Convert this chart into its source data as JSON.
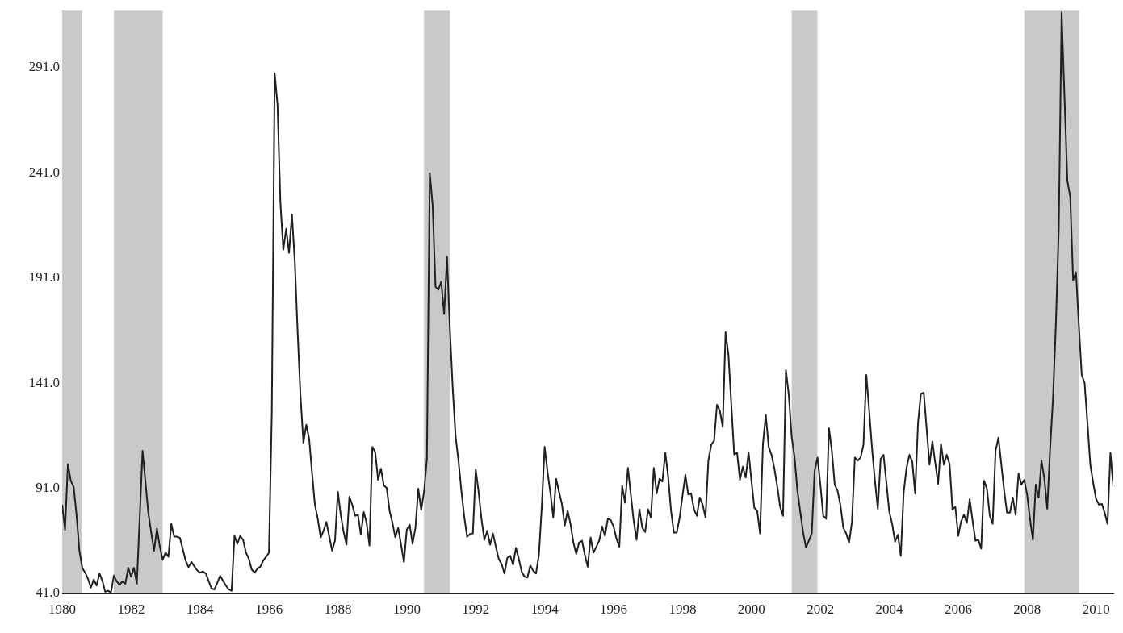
{
  "chart_data": {
    "type": "line",
    "color": "#231f20",
    "marker": "none",
    "x": [
      "1980-01",
      "1980-02",
      "1980-03",
      "1980-04",
      "1980-05",
      "1980-06",
      "1980-07",
      "1980-08",
      "1980-09",
      "1980-10",
      "1980-11",
      "1980-12",
      "1981-01",
      "1981-02",
      "1981-03",
      "1981-04",
      "1981-05",
      "1981-06",
      "1981-07",
      "1981-08",
      "1981-09",
      "1981-10",
      "1981-11",
      "1981-12",
      "1982-01",
      "1982-02",
      "1982-03",
      "1982-04",
      "1982-05",
      "1982-06",
      "1982-07",
      "1982-08",
      "1982-09",
      "1982-10",
      "1982-11",
      "1982-12",
      "1983-01",
      "1983-02",
      "1983-03",
      "1983-04",
      "1983-05",
      "1983-06",
      "1983-07",
      "1983-08",
      "1983-09",
      "1983-10",
      "1983-11",
      "1983-12",
      "1984-01",
      "1984-02",
      "1984-03",
      "1984-04",
      "1984-05",
      "1984-06",
      "1984-07",
      "1984-08",
      "1984-09",
      "1984-10",
      "1984-11",
      "1984-12",
      "1985-01",
      "1985-02",
      "1985-03",
      "1985-04",
      "1985-05",
      "1985-06",
      "1985-07",
      "1985-08",
      "1985-09",
      "1985-10",
      "1985-11",
      "1985-12",
      "1986-01",
      "1986-02",
      "1986-03",
      "1986-04",
      "1986-05",
      "1986-06",
      "1986-07",
      "1986-08",
      "1986-09",
      "1986-10",
      "1986-11",
      "1986-12",
      "1987-01",
      "1987-02",
      "1987-03",
      "1987-04",
      "1987-05",
      "1987-06",
      "1987-07",
      "1987-08",
      "1987-09",
      "1987-10",
      "1987-11",
      "1987-12",
      "1988-01",
      "1988-02",
      "1988-03",
      "1988-04",
      "1988-05",
      "1988-06",
      "1988-07",
      "1988-08",
      "1988-09",
      "1988-10",
      "1988-11",
      "1988-12",
      "1989-01",
      "1989-02",
      "1989-03",
      "1989-04",
      "1989-05",
      "1989-06",
      "1989-07",
      "1989-08",
      "1989-09",
      "1989-10",
      "1989-11",
      "1989-12",
      "1990-01",
      "1990-02",
      "1990-03",
      "1990-04",
      "1990-05",
      "1990-06",
      "1990-07",
      "1990-08",
      "1990-09",
      "1990-10",
      "1990-11",
      "1990-12",
      "1991-01",
      "1991-02",
      "1991-03",
      "1991-04",
      "1991-05",
      "1991-06",
      "1991-07",
      "1991-08",
      "1991-09",
      "1991-10",
      "1991-11",
      "1991-12",
      "1992-01",
      "1992-02",
      "1992-03",
      "1992-04",
      "1992-05",
      "1992-06",
      "1992-07",
      "1992-08",
      "1992-09",
      "1992-10",
      "1992-11",
      "1992-12",
      "1993-01",
      "1993-02",
      "1993-03",
      "1993-04",
      "1993-05",
      "1993-06",
      "1993-07",
      "1993-08",
      "1993-09",
      "1993-10",
      "1993-11",
      "1993-12",
      "1994-01",
      "1994-02",
      "1994-03",
      "1994-04",
      "1994-05",
      "1994-06",
      "1994-07",
      "1994-08",
      "1994-09",
      "1994-10",
      "1994-11",
      "1994-12",
      "1995-01",
      "1995-02",
      "1995-03",
      "1995-04",
      "1995-05",
      "1995-06",
      "1995-07",
      "1995-08",
      "1995-09",
      "1995-10",
      "1995-11",
      "1995-12",
      "1996-01",
      "1996-02",
      "1996-03",
      "1996-04",
      "1996-05",
      "1996-06",
      "1996-07",
      "1996-08",
      "1996-09",
      "1996-10",
      "1996-11",
      "1996-12",
      "1997-01",
      "1997-02",
      "1997-03",
      "1997-04",
      "1997-05",
      "1997-06",
      "1997-07",
      "1997-08",
      "1997-09",
      "1997-10",
      "1997-11",
      "1997-12",
      "1998-01",
      "1998-02",
      "1998-03",
      "1998-04",
      "1998-05",
      "1998-06",
      "1998-07",
      "1998-08",
      "1998-09",
      "1998-10",
      "1998-11",
      "1998-12",
      "1999-01",
      "1999-02",
      "1999-03",
      "1999-04",
      "1999-05",
      "1999-06",
      "1999-07",
      "1999-08",
      "1999-09",
      "1999-10",
      "1999-11",
      "1999-12",
      "2000-01",
      "2000-02",
      "2000-03",
      "2000-04",
      "2000-05",
      "2000-06",
      "2000-07",
      "2000-08",
      "2000-09",
      "2000-10",
      "2000-11",
      "2000-12",
      "2001-01",
      "2001-02",
      "2001-03",
      "2001-04",
      "2001-05",
      "2001-06",
      "2001-07",
      "2001-08",
      "2001-09",
      "2001-10",
      "2001-11",
      "2001-12",
      "2002-01",
      "2002-02",
      "2002-03",
      "2002-04",
      "2002-05",
      "2002-06",
      "2002-07",
      "2002-08",
      "2002-09",
      "2002-10",
      "2002-11",
      "2002-12",
      "2003-01",
      "2003-02",
      "2003-03",
      "2003-04",
      "2003-05",
      "2003-06",
      "2003-07",
      "2003-08",
      "2003-09",
      "2003-10",
      "2003-11",
      "2003-12",
      "2004-01",
      "2004-02",
      "2004-03",
      "2004-04",
      "2004-05",
      "2004-06",
      "2004-07",
      "2004-08",
      "2004-09",
      "2004-10",
      "2004-11",
      "2004-12",
      "2005-01",
      "2005-02",
      "2005-03",
      "2005-04",
      "2005-05",
      "2005-06",
      "2005-07",
      "2005-08",
      "2005-09",
      "2005-10",
      "2005-11",
      "2005-12",
      "2006-01",
      "2006-02",
      "2006-03",
      "2006-04",
      "2006-05",
      "2006-06",
      "2006-07",
      "2006-08",
      "2006-09",
      "2006-10",
      "2006-11",
      "2006-12",
      "2007-01",
      "2007-02",
      "2007-03",
      "2007-04",
      "2007-05",
      "2007-06",
      "2007-07",
      "2007-08",
      "2007-09",
      "2007-10",
      "2007-11",
      "2007-12",
      "2008-01",
      "2008-02",
      "2008-03",
      "2008-04",
      "2008-05",
      "2008-06",
      "2008-07",
      "2008-08",
      "2008-09",
      "2008-10",
      "2008-11",
      "2008-12",
      "2009-01",
      "2009-02",
      "2009-03",
      "2009-04",
      "2009-05",
      "2009-06",
      "2009-07",
      "2009-08",
      "2009-09",
      "2009-10",
      "2009-11",
      "2009-12",
      "2010-01",
      "2010-02",
      "2010-03",
      "2010-04",
      "2010-05",
      "2010-06",
      "2010-07"
    ],
    "values": [
      83.2,
      71.2,
      102.5,
      94.6,
      91.7,
      78.4,
      61.3,
      53.2,
      50.9,
      48,
      43.8,
      47.6,
      44.8,
      50.5,
      47,
      41.8,
      42.3,
      41.4,
      49.5,
      46.7,
      45.2,
      46.7,
      45.6,
      53.2,
      49,
      53.2,
      45.7,
      77,
      108.8,
      94,
      79.4,
      70,
      61.3,
      71.8,
      63.2,
      57,
      60.4,
      58.5,
      74.1,
      68,
      68,
      67.4,
      62,
      56.6,
      53.5,
      56,
      54,
      52,
      50.9,
      51.5,
      50.5,
      47,
      43.3,
      42.9,
      46,
      49.4,
      47,
      44.8,
      43,
      42.3,
      68.4,
      64.6,
      68.4,
      66.5,
      60.4,
      57.5,
      52.4,
      50.9,
      52.8,
      53.7,
      56.6,
      58.5,
      60.3,
      126.9,
      288.3,
      273.1,
      226.6,
      204.4,
      214.3,
      202.9,
      221.1,
      199,
      164.9,
      134.5,
      112.6,
      121.2,
      114.5,
      98.4,
      83.2,
      76.5,
      67.6,
      70.8,
      75,
      68,
      61.3,
      66.1,
      89.3,
      78.4,
      70.2,
      64.2,
      87,
      83.2,
      77.9,
      78.4,
      68.9,
      79.7,
      74.6,
      63.8,
      110.7,
      108.2,
      95,
      100.3,
      92.3,
      91.2,
      80.3,
      74.6,
      67.6,
      72.2,
      64.2,
      56,
      71.4,
      73.7,
      64.6,
      72.2,
      90.8,
      80.7,
      89.3,
      105,
      240.8,
      225.6,
      186.7,
      185.4,
      189.2,
      173.8,
      201,
      166.8,
      138.3,
      115.5,
      104.1,
      89.8,
      77.5,
      68,
      69.3,
      69.5,
      99.9,
      89.3,
      76.5,
      66.5,
      70.8,
      64.2,
      69.5,
      63.2,
      57.5,
      55,
      50.5,
      57.9,
      58.9,
      54.7,
      62.7,
      57.5,
      51.3,
      49,
      48.6,
      54.3,
      51.8,
      50.5,
      59.4,
      82.2,
      110.7,
      98.8,
      88.9,
      77.1,
      95.5,
      89.3,
      83.6,
      73.3,
      80.3,
      74.1,
      65.2,
      59.8,
      65.2,
      66.1,
      59.4,
      53.7,
      67.6,
      60.4,
      63.2,
      66.1,
      72.8,
      68.4,
      76.5,
      75.9,
      72.8,
      67.1,
      63.2,
      92.1,
      84.1,
      100.7,
      88,
      75.6,
      66.5,
      81,
      72.2,
      70.2,
      81,
      77.1,
      100.7,
      88.5,
      95.5,
      94.2,
      107.9,
      96.5,
      80.3,
      69.9,
      69.9,
      77.1,
      87.5,
      97.4,
      88,
      88.5,
      81,
      77.9,
      86.6,
      83.2,
      77.1,
      104.1,
      111.7,
      113.6,
      130.7,
      127.8,
      120.2,
      165.2,
      154.4,
      130.7,
      107,
      107.9,
      95,
      101.3,
      96.1,
      108.2,
      94.6,
      81.7,
      80.3,
      69.5,
      112,
      125.9,
      110.7,
      106.9,
      100.3,
      91.7,
      82.2,
      77.9,
      147.2,
      135.4,
      115.5,
      106,
      89.8,
      79.8,
      69.9,
      62.8,
      66.1,
      69.5,
      99.3,
      105.6,
      92.7,
      77.9,
      76.5,
      119.6,
      108.8,
      92.7,
      89.8,
      82.8,
      72.2,
      69.5,
      65.1,
      75.2,
      105.6,
      104.1,
      105.6,
      111.7,
      144.9,
      127.8,
      109.8,
      94.6,
      81.3,
      105,
      106.9,
      93.6,
      79.8,
      74.1,
      65.7,
      68.9,
      58.9,
      88.9,
      100.7,
      106.9,
      103.7,
      88.5,
      122.1,
      136,
      136.4,
      119.3,
      102.2,
      113.2,
      103.1,
      93.1,
      112,
      102.2,
      106.9,
      102.5,
      80.9,
      82.2,
      68.4,
      75.2,
      78.4,
      74.6,
      85.8,
      75.6,
      66.1,
      66.5,
      62.3,
      94.6,
      90.8,
      77.9,
      74.1,
      108.8,
      115.1,
      102.5,
      89.8,
      79.4,
      79.4,
      86.6,
      78.4,
      98,
      92.7,
      95,
      87.9,
      76.5,
      66.5,
      92.7,
      86.6,
      104.1,
      95.5,
      81.3,
      109.8,
      133.5,
      168.7,
      214.3,
      317.2,
      276.9,
      237.1,
      229.5,
      189.9,
      193.7,
      168.7,
      144.9,
      141.1,
      122.1,
      102.2,
      93.6,
      86,
      83.2,
      83.6,
      79.4,
      74.1,
      107.9,
      91.7
    ],
    "xlim": [
      "1980-01",
      "2010-07"
    ],
    "xticks": [
      "1980",
      "1982",
      "1984",
      "1986",
      "1988",
      "1990",
      "1992",
      "1994",
      "1996",
      "1998",
      "2000",
      "2002",
      "2004",
      "2006",
      "2008",
      "2010"
    ],
    "ylim": [
      41,
      318
    ],
    "yticks": [
      {
        "value": 41,
        "label": "41.0"
      },
      {
        "value": 91,
        "label": "91.0"
      },
      {
        "value": 141,
        "label": "141.0"
      },
      {
        "value": 191,
        "label": "191.0"
      },
      {
        "value": 241,
        "label": "241.0"
      },
      {
        "value": 291,
        "label": "291.0"
      }
    ],
    "bands": [
      {
        "axis": "x",
        "from": "1980-01",
        "to": "1980-08",
        "color": "#c8c9cb"
      },
      {
        "axis": "x",
        "from": "1981-07",
        "to": "1982-12",
        "color": "#c8c9cb"
      },
      {
        "axis": "x",
        "from": "1990-07",
        "to": "1991-04",
        "color": "#c8c9cb"
      },
      {
        "axis": "x",
        "from": "2001-03",
        "to": "2001-12",
        "color": "#c8c9cb"
      },
      {
        "axis": "x",
        "from": "2007-12",
        "to": "2009-07",
        "color": "#c8c9cb"
      }
    ]
  }
}
